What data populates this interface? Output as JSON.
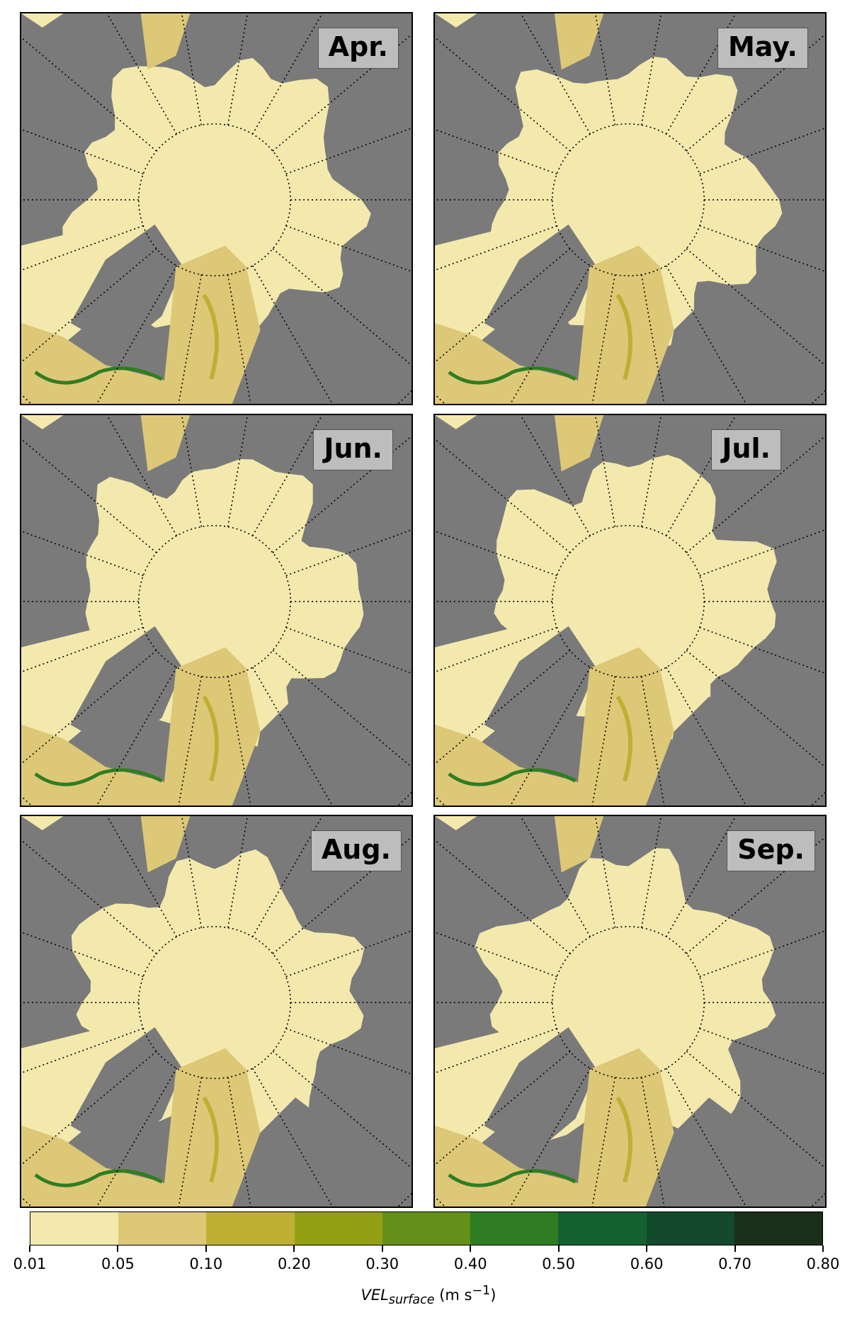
{
  "panels": [
    {
      "label": "Apr."
    },
    {
      "label": "May."
    },
    {
      "label": "Jun."
    },
    {
      "label": "Jul."
    },
    {
      "label": "Aug."
    },
    {
      "label": "Sep."
    }
  ],
  "colorbar": {
    "ticks": [
      "0.01",
      "0.05",
      "0.10",
      "0.20",
      "0.30",
      "0.40",
      "0.50",
      "0.60",
      "0.70",
      "0.80"
    ],
    "colors": [
      "#f3e9ad",
      "#ddc877",
      "#bfb035",
      "#959f14",
      "#63901a",
      "#2f7d22",
      "#146130",
      "#134a2b",
      "#1a2e1a"
    ],
    "title_var": "VEL",
    "title_sub": "surface",
    "title_units_pre": " (m s",
    "title_units_sup": "−1",
    "title_units_post": ")"
  },
  "colors": {
    "land": "#7a7a7a",
    "ice_low": "#f3e9ad",
    "ice_mid": "#ddc877",
    "ice_high": "#bfb035"
  }
}
